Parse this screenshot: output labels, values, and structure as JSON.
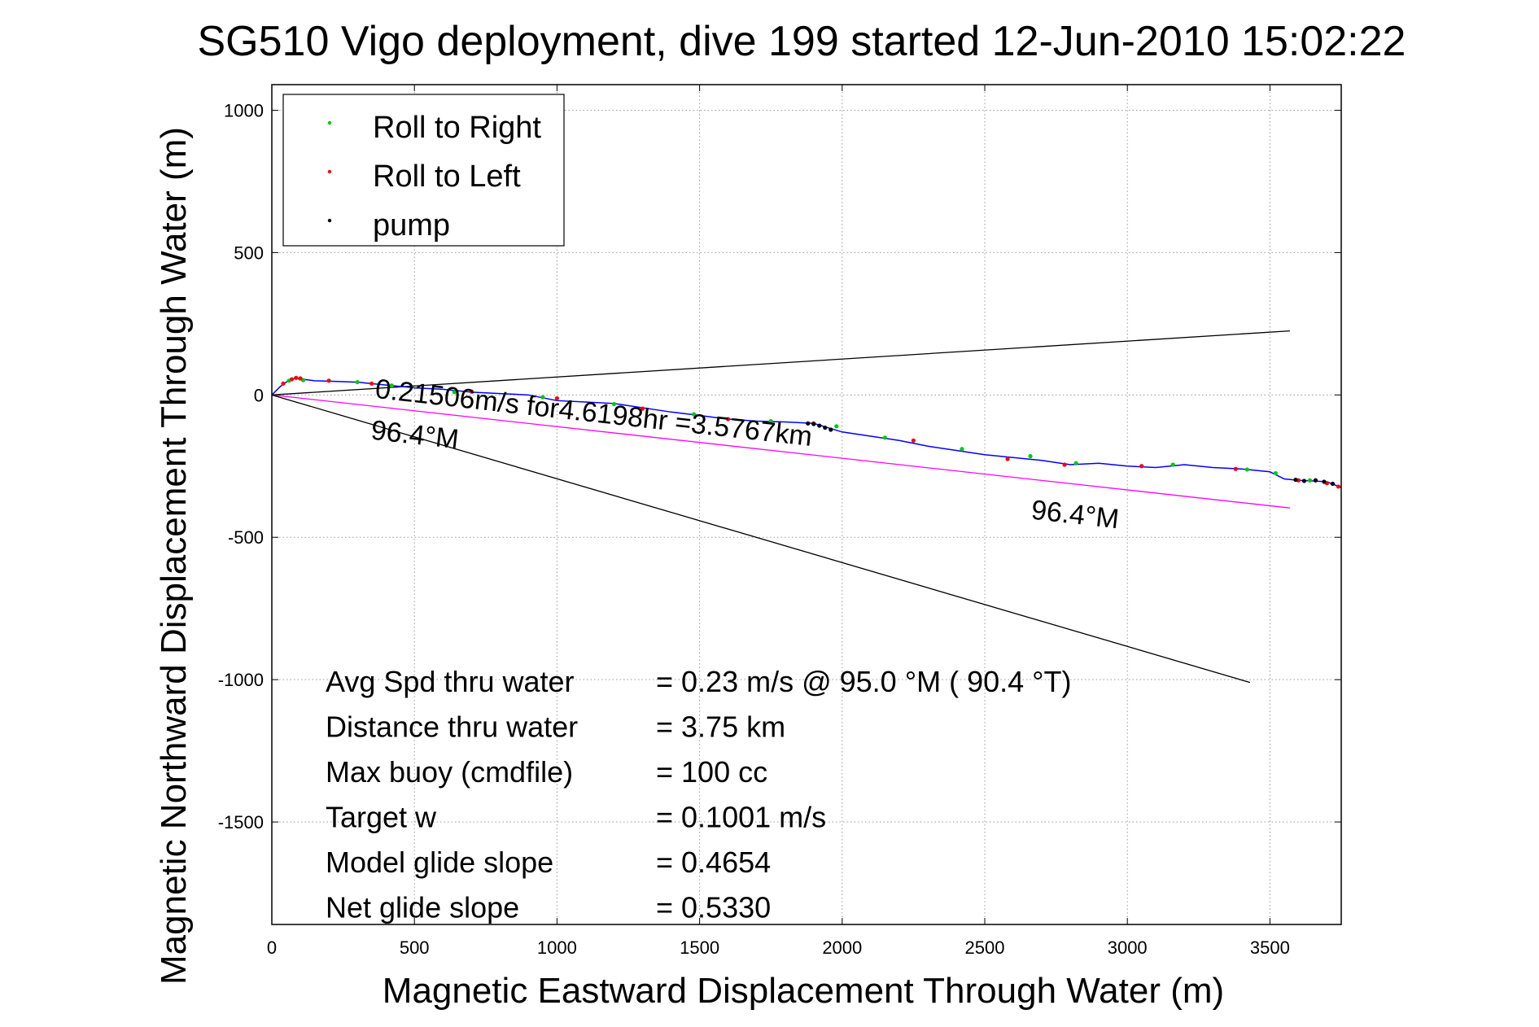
{
  "chart_data": {
    "type": "scatter",
    "title": "SG510 Vigo deployment, dive 199 started 12-Jun-2010 15:02:22",
    "xlabel": "Magnetic Eastward Displacement Through Water (m)",
    "ylabel": "Magnetic Northward Displacement Through Water (m)",
    "xlim": [
      0,
      3750
    ],
    "ylim": [
      -1860,
      1090
    ],
    "xticks": [
      0,
      500,
      1000,
      1500,
      2000,
      2500,
      3000,
      3500
    ],
    "yticks": [
      1000,
      500,
      0,
      -500,
      -1000,
      -1500
    ],
    "grid": true,
    "legend": {
      "placement": "top-left",
      "entries": [
        {
          "label": "Roll to Right",
          "color": "#00cc00"
        },
        {
          "label": "Roll to Left",
          "color": "#ff0000"
        },
        {
          "label": "pump",
          "color": "#000000"
        }
      ]
    },
    "track": {
      "color": "#0000ff",
      "x": [
        0,
        30,
        55,
        80,
        110,
        150,
        210,
        300,
        400,
        500,
        600,
        700,
        800,
        900,
        1000,
        1100,
        1200,
        1300,
        1400,
        1500,
        1600,
        1700,
        1800,
        1900,
        1950,
        2000,
        2100,
        2200,
        2300,
        2400,
        2500,
        2600,
        2700,
        2800,
        2900,
        3000,
        3100,
        3200,
        3300,
        3400,
        3500,
        3550,
        3600,
        3650,
        3700,
        3750
      ],
      "y": [
        0,
        30,
        48,
        58,
        55,
        50,
        48,
        45,
        35,
        25,
        20,
        10,
        5,
        0,
        -20,
        -25,
        -30,
        -45,
        -60,
        -72,
        -85,
        -92,
        -95,
        -100,
        -115,
        -130,
        -145,
        -160,
        -180,
        -195,
        -210,
        -220,
        -230,
        -245,
        -240,
        -250,
        -255,
        -245,
        -255,
        -260,
        -270,
        -295,
        -300,
        -302,
        -305,
        -325
      ]
    },
    "markers": {
      "roll_right": {
        "x": [
          60,
          110,
          300,
          420,
          640,
          950,
          1200,
          1480,
          1750,
          1980,
          2150,
          2420,
          2660,
          2820,
          3160,
          3420,
          3520,
          3640
        ],
        "y": [
          50,
          52,
          45,
          33,
          10,
          -8,
          -32,
          -68,
          -92,
          -110,
          -150,
          -190,
          -215,
          -240,
          -245,
          -262,
          -275,
          -300
        ]
      },
      "roll_left": {
        "x": [
          40,
          70,
          85,
          100,
          200,
          350,
          700,
          1000,
          1300,
          1600,
          1900,
          2250,
          2580,
          2780,
          3050,
          3380,
          3600,
          3700,
          3740
        ],
        "y": [
          40,
          55,
          60,
          58,
          50,
          40,
          12,
          -12,
          -48,
          -85,
          -100,
          -160,
          -225,
          -245,
          -250,
          -260,
          -300,
          -310,
          -322
        ]
      },
      "pump": {
        "x": [
          1880,
          1900,
          1920,
          1940,
          1960,
          3590,
          3620,
          3660,
          3690,
          3720
        ],
        "y": [
          -100,
          -102,
          -108,
          -115,
          -122,
          -298,
          -302,
          -300,
          -305,
          -312
        ]
      }
    },
    "lines": [
      {
        "color": "#ff00ff",
        "x": [
          0,
          3570
        ],
        "y": [
          0,
          -397
        ]
      },
      {
        "color": "#000000",
        "x": [
          0,
          3570
        ],
        "y": [
          0,
          225
        ]
      },
      {
        "color": "#000000",
        "x": [
          0,
          3430
        ],
        "y": [
          0,
          -1010
        ]
      }
    ],
    "annotations": [
      {
        "text": "0.21506m/s for4.6198hr =3.5767km",
        "x": 360,
        "y": -10,
        "rotation_deg": 6.3
      },
      {
        "text": "96.4°M",
        "x": 345,
        "y": -155,
        "rotation_deg": 6.3
      },
      {
        "text": "96.4°M",
        "x": 2660,
        "y": -435,
        "rotation_deg": 6.3
      }
    ],
    "summary": [
      {
        "label": "Avg Spd thru water",
        "value": "=  0.23 m/s @  95.0 °M ( 90.4 °T)"
      },
      {
        "label": "Distance thru water",
        "value": "=  3.75 km"
      },
      {
        "label": "Max buoy (cmdfile)",
        "value": "= 100 cc"
      },
      {
        "label": "Target w",
        "value": "= 0.1001 m/s"
      },
      {
        "label": "Model glide slope",
        "value": "= 0.4654"
      },
      {
        "label": "Net glide slope",
        "value": "= 0.5330"
      }
    ]
  }
}
